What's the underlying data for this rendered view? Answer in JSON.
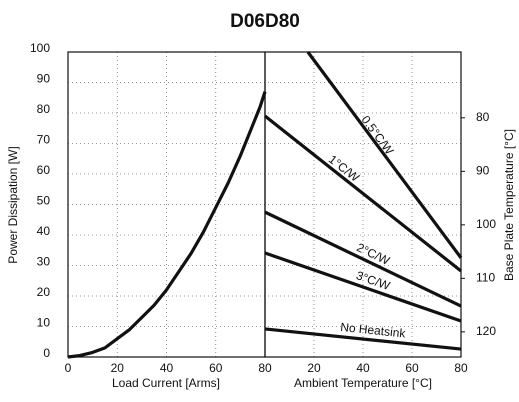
{
  "chart_data": [
    {
      "type": "line",
      "title": "D06D80",
      "xlabel": "Load Current [Arms]",
      "ylabel": "Power Dissipation [W]",
      "xlim": [
        0,
        80
      ],
      "xticks": [
        0,
        20,
        40,
        60,
        80
      ],
      "ylim": [
        0,
        100
      ],
      "yticks": [
        0,
        10,
        20,
        30,
        40,
        50,
        60,
        70,
        80,
        90,
        100
      ],
      "grid": true,
      "series": [
        {
          "color": "#111111",
          "x": [
            0,
            5,
            10,
            15,
            20,
            25,
            30,
            35,
            40,
            45,
            50,
            55,
            60,
            65,
            70,
            75,
            78,
            80
          ],
          "values": [
            0,
            0.5,
            1.5,
            3,
            6,
            9,
            13,
            17,
            22,
            28,
            34,
            41,
            49,
            57,
            66,
            76,
            82,
            87
          ]
        }
      ]
    },
    {
      "type": "line",
      "xlabel": "Ambient Temperature [°C]",
      "y2label": "Base Plate Temperature [°C]",
      "xlim": [
        0,
        80
      ],
      "xticks": [
        20,
        40,
        60,
        80
      ],
      "ylim": [
        0,
        100
      ],
      "y2lim": [
        124.7,
        67.7
      ],
      "y2ticks": [
        80,
        90,
        100,
        110,
        120
      ],
      "grid": true,
      "series": [
        {
          "name": "0.5°C/W",
          "color": "#111111",
          "x": [
            17.5,
            80
          ],
          "values": [
            100,
            32.5
          ]
        },
        {
          "name": "1°C/W",
          "color": "#111111",
          "x": [
            0,
            80
          ],
          "values": [
            79,
            28.2
          ]
        },
        {
          "name": "2°C/W",
          "color": "#111111",
          "x": [
            0,
            80
          ],
          "values": [
            47.5,
            16.7
          ]
        },
        {
          "name": "3°C/W",
          "color": "#111111",
          "x": [
            0,
            80
          ],
          "values": [
            34.1,
            11.8
          ]
        },
        {
          "name": "No Heatsink",
          "color": "#111111",
          "x": [
            0,
            80
          ],
          "values": [
            9.2,
            2.6
          ]
        }
      ]
    }
  ]
}
